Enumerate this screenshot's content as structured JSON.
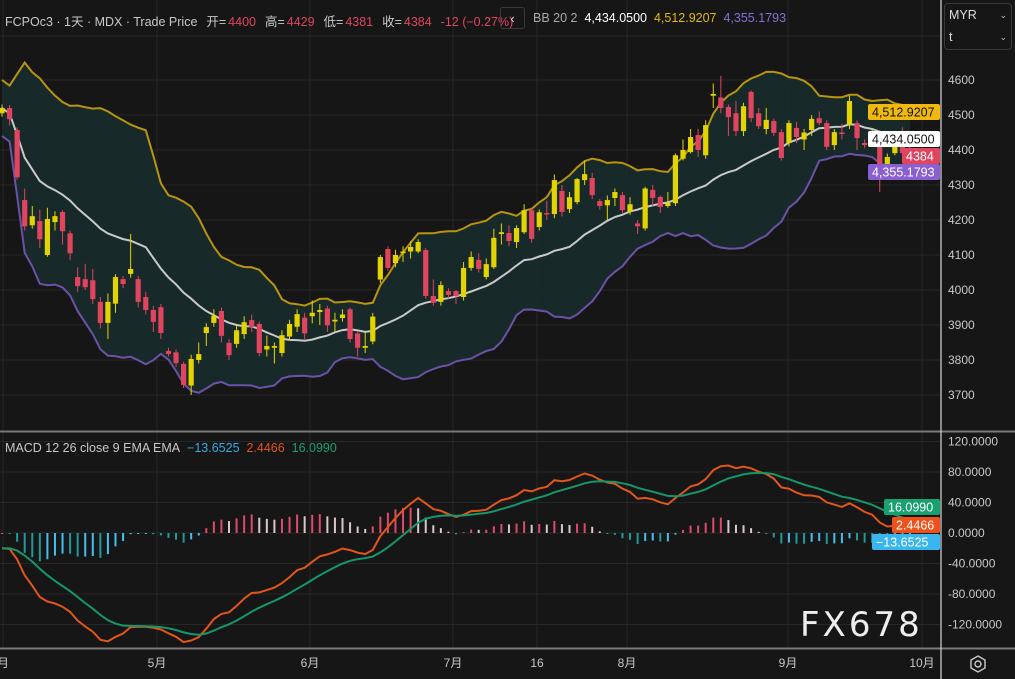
{
  "header": {
    "symbol_line": "FCPOc3 · 1天 · MDX · Trade Price",
    "open_label": "开=",
    "open": "4400",
    "high_label": "高=",
    "high": "4429",
    "low_label": "低=",
    "low": "4381",
    "close_label": "收=",
    "close": "4384",
    "change": "-12 (−0.27%)",
    "back_icon": "chevron-left"
  },
  "bb_legend": {
    "label": "BB 20 2",
    "basis": "4,434.0500",
    "upper": "4,512.9207",
    "lower": "4,355.1793"
  },
  "macd_legend": {
    "label": "MACD 12 26 close 9 EMA EMA",
    "histogram": "−13.6525",
    "macd": "2.4466",
    "signal": "16.0990"
  },
  "currency_select": {
    "value": "MYR",
    "second_value": "t"
  },
  "price_axis": {
    "ticks": [
      "4600",
      "4500",
      "4400",
      "4300",
      "4200",
      "4100",
      "4000",
      "3900",
      "3800",
      "3700"
    ],
    "badges": {
      "upper": "4,512.9207",
      "basis": "4,434.0500",
      "last": "4384",
      "lower": "4,355.1793"
    }
  },
  "macd_axis": {
    "ticks": [
      "120.0000",
      "80.0000",
      "40.0000",
      "0.0000",
      "-40.0000",
      "-80.0000",
      "-120.0000"
    ],
    "badges": {
      "signal": "16.0990",
      "macd": "2.4466",
      "histogram": "−13.6525"
    }
  },
  "time_axis": {
    "ticks": [
      "月",
      "5月",
      "6月",
      "7月",
      "16",
      "8月",
      "9月",
      "10月"
    ]
  },
  "watermark": "FX678",
  "colors": {
    "up": "#e3d400",
    "down": "#e0445e",
    "bb_upper": "#b8940f",
    "bb_basis": "#c9c9c9",
    "bb_lower": "#6b52a8",
    "bb_fill": "#172a2a",
    "macd": "#e2561a",
    "signal": "#17966a",
    "hist_pos_up": "#e04a6a",
    "hist_pos_down": "#d8c8cc",
    "hist_neg_down": "#1f9a9a",
    "hist_neg_up": "#45bff0",
    "background": "#161616"
  },
  "chart_data": {
    "type": "candlestick",
    "ohlc_format": [
      "open",
      "high",
      "low",
      "close"
    ],
    "y_range": [
      3650,
      4650
    ],
    "macd_range": [
      -135,
      130
    ],
    "x_ticks": [
      "月",
      "5月",
      "6月",
      "7月",
      "16",
      "8月",
      "9月",
      "10月"
    ],
    "indicators": [
      "BB 20 2",
      "MACD 12 26 close 9 EMA EMA"
    ],
    "candles": [
      [
        4505,
        4530,
        4495,
        4520
      ],
      [
        4520,
        4528,
        4470,
        4488
      ],
      [
        4457,
        4465,
        4315,
        4322
      ],
      [
        4257,
        4290,
        4170,
        4182
      ],
      [
        4185,
        4240,
        4175,
        4211
      ],
      [
        4197,
        4230,
        4120,
        4145
      ],
      [
        4100,
        4235,
        4095,
        4203
      ],
      [
        4194,
        4225,
        4170,
        4211
      ],
      [
        4223,
        4228,
        4130,
        4168
      ],
      [
        4162,
        4170,
        4085,
        4105
      ],
      [
        4037,
        4065,
        3995,
        4011
      ],
      [
        4031,
        4075,
        4000,
        4008
      ],
      [
        4028,
        4060,
        3960,
        3974
      ],
      [
        3966,
        3980,
        3890,
        3906
      ],
      [
        3906,
        3990,
        3860,
        3966
      ],
      [
        3961,
        4045,
        3935,
        4037
      ],
      [
        4031,
        4040,
        4005,
        4017
      ],
      [
        4046,
        4160,
        4035,
        4060
      ],
      [
        4031,
        4040,
        3950,
        3966
      ],
      [
        3980,
        3995,
        3930,
        3943
      ],
      [
        3943,
        3955,
        3880,
        3909
      ],
      [
        3951,
        3960,
        3860,
        3877
      ],
      [
        3826,
        3835,
        3810,
        3817
      ],
      [
        3822,
        3830,
        3780,
        3791
      ],
      [
        3789,
        3795,
        3720,
        3729
      ],
      [
        3727,
        3815,
        3700,
        3803
      ],
      [
        3800,
        3850,
        3790,
        3817
      ],
      [
        3877,
        3905,
        3840,
        3894
      ],
      [
        3906,
        3945,
        3895,
        3926
      ],
      [
        3940,
        3950,
        3850,
        3869
      ],
      [
        3849,
        3860,
        3800,
        3814
      ],
      [
        3846,
        3900,
        3835,
        3885
      ],
      [
        3874,
        3925,
        3860,
        3908
      ],
      [
        3914,
        3930,
        3880,
        3894
      ],
      [
        3903,
        3910,
        3810,
        3820
      ],
      [
        3830,
        3870,
        3810,
        3840
      ],
      [
        3835,
        3850,
        3790,
        3840
      ],
      [
        3820,
        3885,
        3810,
        3871
      ],
      [
        3867,
        3915,
        3855,
        3903
      ],
      [
        3895,
        3945,
        3880,
        3931
      ],
      [
        3921,
        3935,
        3860,
        3876
      ],
      [
        3925,
        3970,
        3905,
        3935
      ],
      [
        3937,
        3960,
        3900,
        3943
      ],
      [
        3947,
        3955,
        3880,
        3899
      ],
      [
        3910,
        3935,
        3880,
        3915
      ],
      [
        3920,
        3945,
        3910,
        3930
      ],
      [
        3945,
        3950,
        3850,
        3860
      ],
      [
        3876,
        3880,
        3810,
        3835
      ],
      [
        3835,
        3880,
        3820,
        3840
      ],
      [
        3853,
        3935,
        3845,
        3924
      ],
      [
        4030,
        4100,
        4020,
        4094
      ],
      [
        4117,
        4125,
        4055,
        4063
      ],
      [
        4077,
        4115,
        4065,
        4100
      ],
      [
        4105,
        4125,
        4080,
        4110
      ],
      [
        4110,
        4140,
        4090,
        4123
      ],
      [
        4110,
        4145,
        4105,
        4137
      ],
      [
        4114,
        4120,
        3975,
        3983
      ],
      [
        3983,
        4030,
        3955,
        3963
      ],
      [
        3966,
        4025,
        3955,
        4014
      ],
      [
        3997,
        4005,
        3975,
        3986
      ],
      [
        3997,
        4000,
        3960,
        3983
      ],
      [
        3980,
        4080,
        3970,
        4063
      ],
      [
        4063,
        4110,
        4055,
        4094
      ],
      [
        4086,
        4105,
        4050,
        4060
      ],
      [
        4037,
        4090,
        4030,
        4074
      ],
      [
        4065,
        4175,
        4060,
        4149
      ],
      [
        4160,
        4190,
        4130,
        4165
      ],
      [
        4163,
        4185,
        4125,
        4140
      ],
      [
        4137,
        4185,
        4120,
        4177
      ],
      [
        4165,
        4245,
        4160,
        4228
      ],
      [
        4228,
        4235,
        4135,
        4146
      ],
      [
        4180,
        4230,
        4170,
        4222
      ],
      [
        4220,
        4255,
        4200,
        4217
      ],
      [
        4217,
        4330,
        4205,
        4314
      ],
      [
        4283,
        4300,
        4210,
        4223
      ],
      [
        4231,
        4280,
        4220,
        4265
      ],
      [
        4251,
        4320,
        4245,
        4317
      ],
      [
        4314,
        4370,
        4300,
        4331
      ],
      [
        4320,
        4335,
        4260,
        4271
      ],
      [
        4254,
        4260,
        4230,
        4240
      ],
      [
        4242,
        4270,
        4200,
        4257
      ],
      [
        4263,
        4290,
        4240,
        4280
      ],
      [
        4271,
        4280,
        4220,
        4228
      ],
      [
        4223,
        4265,
        4215,
        4245
      ],
      [
        4190,
        4200,
        4160,
        4182
      ],
      [
        4176,
        4295,
        4170,
        4290
      ],
      [
        4286,
        4300,
        4240,
        4263
      ],
      [
        4266,
        4270,
        4220,
        4237
      ],
      [
        4240,
        4280,
        4235,
        4249
      ],
      [
        4248,
        4390,
        4240,
        4385
      ],
      [
        4375,
        4430,
        4370,
        4400
      ],
      [
        4394,
        4460,
        4390,
        4437
      ],
      [
        4443,
        4460,
        4380,
        4400
      ],
      [
        4385,
        4485,
        4375,
        4471
      ],
      [
        4555,
        4590,
        4520,
        4560
      ],
      [
        4550,
        4612,
        4505,
        4520
      ],
      [
        4523,
        4530,
        4440,
        4494
      ],
      [
        4505,
        4540,
        4440,
        4454
      ],
      [
        4454,
        4535,
        4440,
        4525
      ],
      [
        4566,
        4570,
        4480,
        4491
      ],
      [
        4505,
        4520,
        4460,
        4468
      ],
      [
        4460,
        4520,
        4445,
        4486
      ],
      [
        4483,
        4490,
        4440,
        4449
      ],
      [
        4451,
        4460,
        4370,
        4377
      ],
      [
        4420,
        4485,
        4410,
        4477
      ],
      [
        4463,
        4480,
        4420,
        4437
      ],
      [
        4430,
        4460,
        4400,
        4450
      ],
      [
        4457,
        4500,
        4440,
        4489
      ],
      [
        4491,
        4510,
        4470,
        4477
      ],
      [
        4477,
        4485,
        4400,
        4409
      ],
      [
        4414,
        4460,
        4400,
        4451
      ],
      [
        4450,
        4475,
        4430,
        4446
      ],
      [
        4471,
        4555,
        4460,
        4540
      ],
      [
        4477,
        4485,
        4400,
        4434
      ],
      [
        4420,
        4430,
        4405,
        4414
      ],
      [
        4423,
        4460,
        4410,
        4431
      ],
      [
        4420,
        4430,
        4280,
        4343
      ],
      [
        4346,
        4390,
        4320,
        4380
      ],
      [
        4391,
        4450,
        4385,
        4443
      ],
      [
        4434,
        4465,
        4385,
        4391
      ],
      [
        4400,
        4429,
        4381,
        4384
      ]
    ]
  }
}
